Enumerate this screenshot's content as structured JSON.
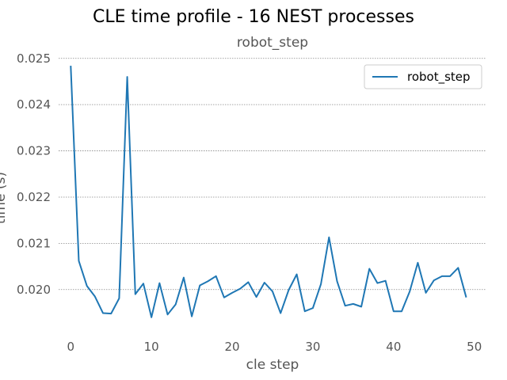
{
  "figure": {
    "suptitle": "CLE time profile - 16 NEST processes",
    "subtitle": "robot_step"
  },
  "chart_data": {
    "type": "line",
    "title": "robot_step",
    "xlabel": "cle step",
    "ylabel": "time (s)",
    "xlim": [
      -1.5,
      51.5
    ],
    "ylim": [
      0.01914,
      0.02503
    ],
    "xticks": [
      0,
      10,
      20,
      30,
      40,
      50
    ],
    "xtick_labels": [
      "0",
      "10",
      "20",
      "30",
      "40",
      "50"
    ],
    "yticks": [
      0.02,
      0.021,
      0.022,
      0.023,
      0.024,
      0.025
    ],
    "ytick_labels": [
      "0.020",
      "0.021",
      "0.022",
      "0.023",
      "0.024",
      "0.025"
    ],
    "grid": "horizontal dotted",
    "legend": {
      "placement": "top-right",
      "entries": [
        "robot_step"
      ]
    },
    "series": [
      {
        "name": "robot_step",
        "color": "#1f77b4",
        "x": [
          0,
          1,
          2,
          3,
          4,
          5,
          6,
          7,
          8,
          9,
          10,
          11,
          12,
          13,
          14,
          15,
          16,
          17,
          18,
          19,
          20,
          21,
          22,
          23,
          24,
          25,
          26,
          27,
          28,
          29,
          30,
          31,
          32,
          33,
          34,
          35,
          36,
          37,
          38,
          39,
          40,
          41,
          42,
          43,
          44,
          45,
          46,
          47,
          48,
          49
        ],
        "y": [
          0.02484,
          0.02062,
          0.02008,
          0.01985,
          0.01949,
          0.01948,
          0.01981,
          0.0246,
          0.0199,
          0.02013,
          0.0194,
          0.02014,
          0.01946,
          0.01968,
          0.02026,
          0.01942,
          0.02009,
          0.02018,
          0.02029,
          0.01983,
          0.01993,
          0.02002,
          0.02016,
          0.01984,
          0.02015,
          0.01996,
          0.01949,
          0.01999,
          0.02033,
          0.01953,
          0.0196,
          0.02012,
          0.02113,
          0.02018,
          0.01965,
          0.01969,
          0.01963,
          0.02045,
          0.02014,
          0.02019,
          0.01953,
          0.01953,
          0.01996,
          0.02058,
          0.01993,
          0.0202,
          0.02029,
          0.02029,
          0.02047,
          0.01983
        ]
      }
    ]
  }
}
